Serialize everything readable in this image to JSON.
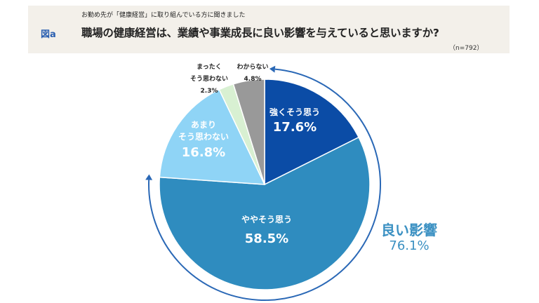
{
  "header": {
    "subtitle": "お勤め先が「健康経営」に取り組んでいる方に聞きました",
    "figure_label": "図a",
    "question": "職場の健康経営は、業績や事業成長に良い影響を与えていると思いますか?",
    "sample": "（n=792）"
  },
  "chart_data": {
    "type": "pie",
    "title": "職場の健康経営は、業績や事業成長に良い影響を与えていると思いますか?",
    "categories": [
      "強くそう思う",
      "ややそう思う",
      "あまりそう思わない",
      "まったくそう思わない",
      "わからない"
    ],
    "values": [
      17.6,
      58.5,
      16.8,
      2.3,
      4.8
    ],
    "value_labels": [
      "17.6%",
      "58.5%",
      "16.8%",
      "2.3%",
      "4.8%"
    ],
    "colors": [
      "#0b4ca6",
      "#2f8cbf",
      "#8fd4f6",
      "#d8f0d2",
      "#999999"
    ],
    "start": "top",
    "direction": "clockwise",
    "annotation": {
      "label": "良い影響",
      "value": "76.1%",
      "color": "#3a90c2",
      "arrow_color": "#2a68b6"
    }
  }
}
